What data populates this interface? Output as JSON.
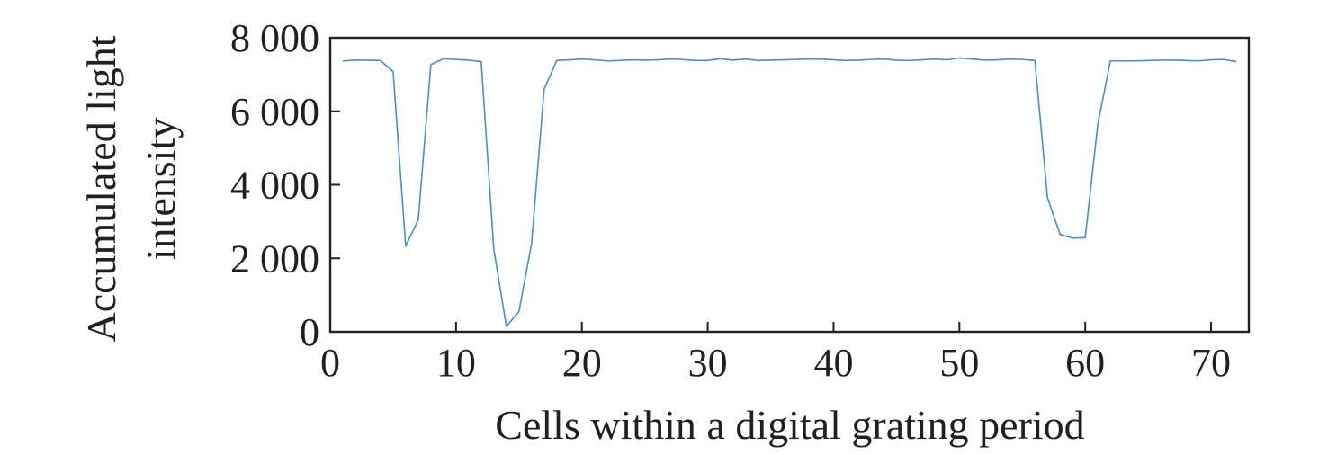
{
  "chart_data": {
    "type": "line",
    "xlabel": "Cells within a digital grating period",
    "ylabel_lines": [
      "Accumulated light",
      "intensity"
    ],
    "xlim": [
      0,
      73
    ],
    "ylim": [
      0,
      8000
    ],
    "x_ticks": [
      0,
      10,
      20,
      30,
      40,
      50,
      60,
      70
    ],
    "x_tick_labels": [
      "0",
      "10",
      "20",
      "30",
      "40",
      "50",
      "60",
      "70"
    ],
    "y_ticks": [
      0,
      2000,
      4000,
      6000,
      8000
    ],
    "y_tick_labels": [
      "0",
      "2 000",
      "4 000",
      "6 000",
      "8 000"
    ],
    "grid": false,
    "line_color": "#4a8ec2",
    "series": [
      {
        "x": [
          1,
          2,
          3,
          4,
          5,
          6,
          7,
          8,
          9,
          10,
          11,
          12,
          13,
          14,
          15,
          16,
          17,
          18,
          19,
          20,
          21,
          22,
          23,
          24,
          25,
          26,
          27,
          28,
          29,
          30,
          31,
          32,
          33,
          34,
          35,
          36,
          37,
          38,
          39,
          40,
          41,
          42,
          43,
          44,
          45,
          46,
          47,
          48,
          49,
          50,
          51,
          52,
          53,
          54,
          55,
          56,
          57,
          58,
          59,
          60,
          61,
          62,
          63,
          64,
          65,
          66,
          67,
          68,
          69,
          70,
          71,
          72
        ],
        "y": [
          7370,
          7390,
          7390,
          7380,
          7080,
          2330,
          3050,
          7270,
          7430,
          7410,
          7390,
          7350,
          2250,
          150,
          550,
          2400,
          6600,
          7380,
          7400,
          7420,
          7400,
          7370,
          7380,
          7400,
          7390,
          7400,
          7420,
          7410,
          7380,
          7380,
          7430,
          7390,
          7420,
          7380,
          7390,
          7400,
          7410,
          7420,
          7420,
          7400,
          7380,
          7390,
          7410,
          7420,
          7390,
          7380,
          7400,
          7420,
          7400,
          7450,
          7420,
          7390,
          7400,
          7420,
          7410,
          7380,
          3650,
          2650,
          2550,
          2560,
          5650,
          7370,
          7370,
          7370,
          7380,
          7390,
          7390,
          7380,
          7370,
          7400,
          7410,
          7350
        ]
      }
    ]
  }
}
